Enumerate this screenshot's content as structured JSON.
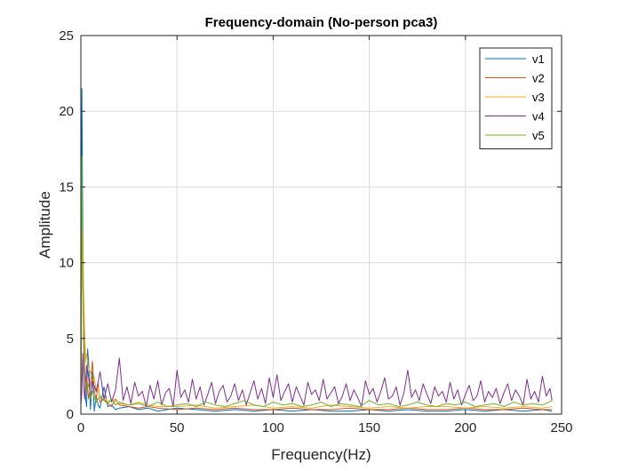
{
  "chart_data": {
    "type": "line",
    "title": "Frequency-domain (No-person pca3)",
    "xlabel": "Frequency(Hz)",
    "ylabel": "Amplitude",
    "xlim": [
      0,
      250
    ],
    "ylim": [
      0,
      25
    ],
    "xticks": [
      0,
      50,
      100,
      150,
      200,
      250
    ],
    "yticks": [
      0,
      5,
      10,
      15,
      20,
      25
    ],
    "grid": true,
    "legend_position": "top-right",
    "series": [
      {
        "name": "v1",
        "color": "#0072BD",
        "x": [
          0,
          0.5,
          1,
          1.5,
          2,
          2.5,
          3,
          3.5,
          4,
          5,
          6,
          7,
          8,
          9,
          10,
          12,
          14,
          16,
          18,
          20,
          25,
          30,
          35,
          40,
          45,
          50,
          60,
          70,
          80,
          90,
          100,
          110,
          120,
          130,
          140,
          150,
          160,
          170,
          180,
          190,
          200,
          210,
          220,
          230,
          240,
          245
        ],
        "values": [
          0.5,
          21.5,
          12.0,
          6.0,
          3.0,
          1.0,
          0.5,
          4.3,
          3.5,
          0.3,
          2.8,
          0.2,
          1.2,
          0.6,
          0.4,
          1.8,
          0.5,
          0.6,
          0.3,
          0.4,
          0.5,
          0.3,
          0.4,
          0.2,
          0.3,
          0.4,
          0.3,
          0.2,
          0.3,
          0.2,
          0.3,
          0.2,
          0.3,
          0.2,
          0.2,
          0.3,
          0.2,
          0.3,
          0.2,
          0.2,
          0.3,
          0.2,
          0.3,
          0.2,
          0.3,
          0.2
        ]
      },
      {
        "name": "v2",
        "color": "#D95319",
        "x": [
          0,
          0.5,
          1,
          1.5,
          2,
          2.5,
          3,
          4,
          5,
          6,
          7,
          8,
          9,
          10,
          12,
          14,
          16,
          18,
          20,
          25,
          30,
          35,
          40,
          50,
          60,
          70,
          80,
          90,
          100,
          110,
          120,
          130,
          140,
          150,
          160,
          170,
          180,
          190,
          200,
          210,
          220,
          230,
          240,
          245
        ],
        "values": [
          0.3,
          13.0,
          9.0,
          5.5,
          3.0,
          1.5,
          2.5,
          1.0,
          2.0,
          3.5,
          1.5,
          1.0,
          2.0,
          0.8,
          1.0,
          0.7,
          0.5,
          1.0,
          0.6,
          0.5,
          0.4,
          0.5,
          0.4,
          0.3,
          0.4,
          0.3,
          0.4,
          0.3,
          0.3,
          0.4,
          0.3,
          0.3,
          0.4,
          0.3,
          0.3,
          0.4,
          0.3,
          0.3,
          0.4,
          0.3,
          0.3,
          0.4,
          0.3,
          0.3
        ]
      },
      {
        "name": "v3",
        "color": "#EDB120",
        "x": [
          0,
          0.5,
          1,
          1.5,
          2,
          2.5,
          3,
          4,
          5,
          6,
          7,
          8,
          9,
          10,
          12,
          14,
          16,
          18,
          20,
          25,
          30,
          35,
          40,
          50,
          60,
          70,
          80,
          90,
          100,
          110,
          120,
          130,
          140,
          150,
          160,
          170,
          180,
          190,
          200,
          210,
          220,
          230,
          240,
          245
        ],
        "values": [
          0.4,
          10.5,
          12.0,
          8.0,
          5.5,
          3.5,
          4.0,
          3.0,
          2.8,
          2.0,
          2.5,
          1.5,
          1.8,
          1.0,
          1.2,
          0.8,
          1.0,
          0.9,
          0.7,
          0.6,
          0.8,
          0.6,
          0.5,
          0.5,
          0.6,
          0.4,
          0.5,
          0.6,
          0.4,
          0.5,
          0.4,
          0.6,
          0.5,
          0.4,
          0.5,
          0.4,
          0.5,
          0.5,
          0.4,
          0.5,
          0.4,
          0.5,
          0.4,
          0.5
        ]
      },
      {
        "name": "v4",
        "color": "#7E2F8E",
        "x": [
          0,
          0.5,
          1,
          1.5,
          2,
          3,
          4,
          5,
          6,
          8,
          10,
          12,
          14,
          16,
          18,
          20,
          22,
          24,
          26,
          28,
          30,
          32,
          34,
          36,
          38,
          40,
          42,
          44,
          46,
          48,
          50,
          52,
          54,
          56,
          58,
          60,
          62,
          64,
          66,
          68,
          70,
          72,
          74,
          76,
          78,
          80,
          82,
          84,
          86,
          88,
          90,
          92,
          94,
          96,
          98,
          100,
          102,
          104,
          106,
          108,
          110,
          112,
          114,
          116,
          118,
          120,
          122,
          124,
          126,
          128,
          130,
          132,
          134,
          136,
          138,
          140,
          142,
          144,
          146,
          148,
          150,
          152,
          154,
          156,
          158,
          160,
          162,
          164,
          166,
          168,
          170,
          172,
          174,
          176,
          178,
          180,
          182,
          184,
          186,
          188,
          190,
          192,
          194,
          196,
          198,
          200,
          202,
          204,
          206,
          208,
          210,
          212,
          214,
          216,
          218,
          220,
          222,
          224,
          226,
          228,
          230,
          232,
          234,
          236,
          238,
          240,
          242,
          244,
          245
        ],
        "values": [
          0.6,
          1.5,
          4.0,
          2.0,
          1.0,
          3.2,
          2.5,
          1.0,
          2.2,
          1.5,
          2.8,
          1.0,
          2.0,
          0.8,
          1.6,
          3.7,
          0.9,
          1.8,
          0.7,
          2.1,
          1.2,
          1.5,
          0.5,
          1.9,
          1.0,
          2.2,
          0.6,
          1.4,
          1.7,
          0.5,
          2.9,
          1.1,
          1.6,
          0.8,
          2.3,
          1.0,
          1.8,
          0.6,
          1.3,
          2.1,
          0.7,
          1.5,
          1.9,
          0.8,
          1.2,
          2.0,
          0.9,
          1.6,
          0.6,
          1.4,
          2.2,
          1.0,
          1.7,
          0.7,
          2.4,
          1.1,
          2.6,
          0.9,
          1.5,
          2.0,
          0.8,
          1.8,
          1.2,
          0.6,
          2.1,
          1.3,
          1.6,
          0.9,
          2.3,
          1.0,
          1.4,
          1.8,
          0.7,
          1.2,
          2.0,
          0.9,
          1.6,
          1.1,
          0.5,
          2.2,
          1.3,
          1.7,
          0.8,
          1.5,
          2.4,
          1.0,
          1.2,
          1.8,
          0.6,
          1.4,
          2.9,
          1.1,
          1.6,
          0.9,
          2.0,
          1.3,
          0.7,
          1.8,
          1.2,
          1.5,
          0.8,
          2.1,
          1.0,
          1.6,
          0.6,
          1.3,
          1.9,
          0.9,
          1.2,
          2.2,
          0.8,
          1.5,
          1.1,
          1.7,
          0.7,
          1.4,
          2.0,
          0.9,
          1.6,
          1.2,
          0.6,
          2.3,
          1.0,
          1.5,
          0.8,
          2.5,
          1.2,
          1.7,
          0.9
        ]
      },
      {
        "name": "v5",
        "color": "#77AC30",
        "x": [
          0,
          0.5,
          1,
          1.5,
          2,
          3,
          4,
          5,
          6,
          8,
          10,
          12,
          14,
          16,
          18,
          20,
          25,
          30,
          35,
          40,
          45,
          50,
          55,
          60,
          65,
          70,
          75,
          80,
          85,
          90,
          95,
          100,
          105,
          110,
          115,
          120,
          125,
          130,
          135,
          140,
          145,
          150,
          155,
          160,
          165,
          170,
          175,
          180,
          185,
          190,
          195,
          200,
          205,
          210,
          215,
          220,
          225,
          230,
          235,
          240,
          245
        ],
        "values": [
          0.5,
          17.0,
          9.0,
          4.0,
          2.5,
          1.5,
          2.0,
          1.0,
          1.5,
          0.8,
          1.2,
          0.9,
          0.7,
          1.0,
          0.6,
          0.8,
          0.6,
          0.7,
          0.5,
          0.8,
          0.5,
          0.6,
          0.7,
          0.5,
          0.8,
          0.6,
          0.5,
          0.7,
          0.9,
          0.6,
          0.5,
          0.8,
          0.6,
          0.7,
          0.5,
          0.6,
          0.8,
          0.5,
          0.7,
          0.6,
          0.5,
          0.9,
          0.6,
          0.7,
          0.5,
          0.6,
          0.8,
          0.6,
          0.5,
          0.7,
          0.6,
          0.8,
          0.5,
          0.6,
          0.7,
          0.5,
          0.8,
          0.6,
          0.7,
          0.6,
          0.9
        ]
      }
    ]
  }
}
